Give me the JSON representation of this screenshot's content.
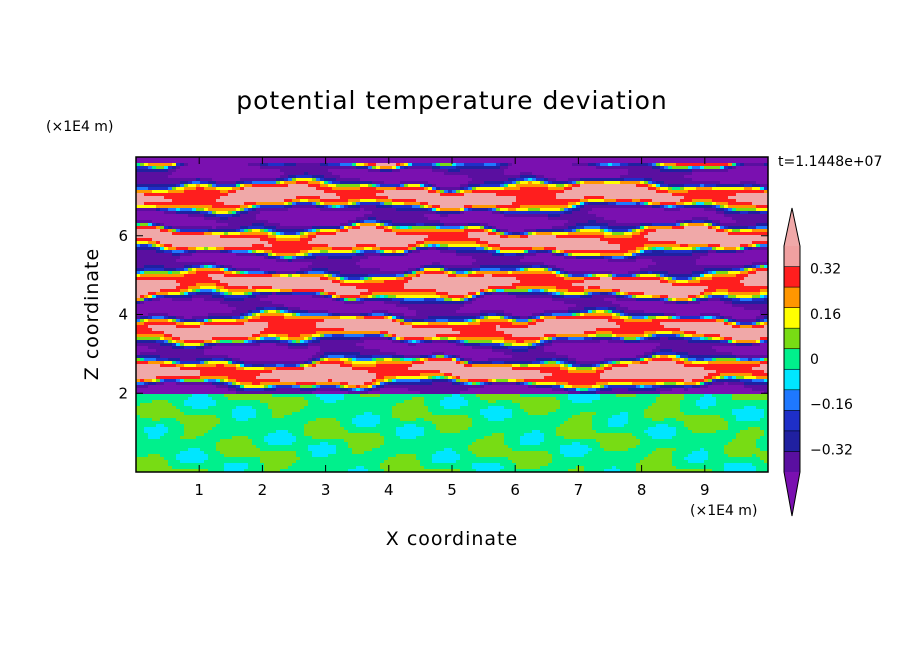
{
  "chart_data": {
    "type": "heatmap",
    "title": "potential temperature deviation",
    "xlabel": "X coordinate",
    "ylabel": "Z coordinate",
    "x_unit": "(×1E4 m)",
    "y_unit": "(×1E4 m)",
    "timestamp": "t=1.1448e+07",
    "xlim": [
      0,
      10
    ],
    "ylim": [
      0,
      8
    ],
    "x_ticks": [
      1,
      2,
      3,
      4,
      5,
      6,
      7,
      8,
      9
    ],
    "y_ticks": [
      2,
      4,
      6
    ],
    "x_tick_labels": [
      "1",
      "2",
      "3",
      "4",
      "5",
      "6",
      "7",
      "8",
      "9"
    ],
    "y_tick_labels": [
      "2",
      "4",
      "6"
    ],
    "colorbar": {
      "levels": [
        -0.4,
        -0.32,
        -0.24,
        -0.16,
        -0.08,
        0,
        0.08,
        0.16,
        0.24,
        0.32,
        0.4
      ],
      "colors": [
        "#5a0fa0",
        "#2020a0",
        "#1e2fc8",
        "#1e78ff",
        "#00e6ff",
        "#00f08c",
        "#78dc14",
        "#ffff00",
        "#ff9600",
        "#ff1e1e",
        "#f0a0a0"
      ],
      "under_color": "#7a10b0",
      "over_color": "#f0a8a8",
      "tick_values": [
        0.32,
        0.16,
        0,
        -0.16,
        -0.32
      ],
      "tick_labels": [
        "0.32",
        "0.16",
        "0",
        "−0.16",
        "−0.32"
      ]
    },
    "description_regions": {
      "lower_layer_z_range": [
        0,
        2
      ],
      "lower_layer_dominant_values": [
        0,
        0.08
      ],
      "upper_layer_z_range": [
        2,
        8
      ],
      "upper_layer_dominant_values": [
        -0.4,
        0.4
      ]
    },
    "grid": false
  }
}
